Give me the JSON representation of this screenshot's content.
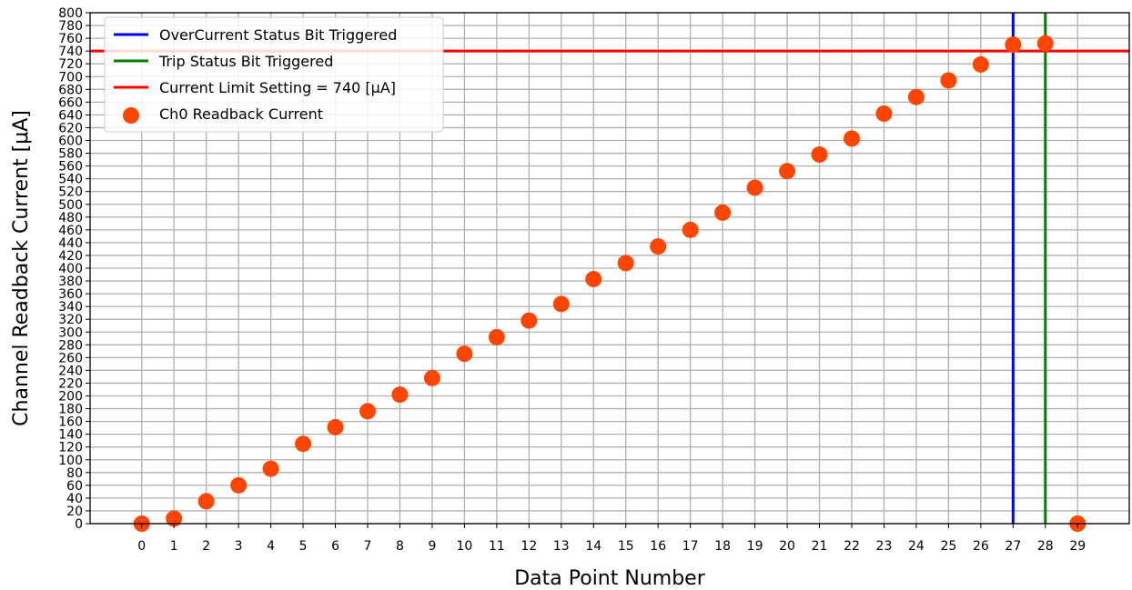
{
  "chart_data": {
    "type": "scatter",
    "title": "",
    "xlabel": "Data Point Number",
    "ylabel": "Channel Readback Current [μA]",
    "xlim": [
      -1.6,
      30.6
    ],
    "ylim": [
      0,
      800
    ],
    "x_ticks": [
      0,
      1,
      2,
      3,
      4,
      5,
      6,
      7,
      8,
      9,
      10,
      11,
      12,
      13,
      14,
      15,
      16,
      17,
      18,
      19,
      20,
      21,
      22,
      23,
      24,
      25,
      26,
      27,
      28,
      29
    ],
    "y_ticks": [
      0,
      20,
      40,
      60,
      80,
      100,
      120,
      140,
      160,
      180,
      200,
      220,
      240,
      260,
      280,
      300,
      320,
      340,
      360,
      380,
      400,
      420,
      440,
      460,
      480,
      500,
      520,
      540,
      560,
      580,
      600,
      620,
      640,
      660,
      680,
      700,
      720,
      740,
      760,
      780,
      800
    ],
    "grid": true,
    "legend_position": "top-left",
    "series": [
      {
        "name": "Ch0 Readback Current",
        "kind": "scatter",
        "color": "#ff4500",
        "x": [
          0,
          1,
          2,
          3,
          4,
          5,
          6,
          7,
          8,
          9,
          10,
          11,
          12,
          13,
          14,
          15,
          16,
          17,
          18,
          19,
          20,
          21,
          22,
          23,
          24,
          25,
          26,
          27,
          28,
          29
        ],
        "y": [
          0,
          8,
          35,
          60,
          86,
          125,
          151,
          176,
          202,
          228,
          266,
          292,
          318,
          344,
          383,
          408,
          434,
          460,
          487,
          526,
          552,
          578,
          603,
          642,
          668,
          694,
          719,
          750,
          752,
          0
        ]
      }
    ],
    "reference_lines": [
      {
        "name": "OverCurrent Status Bit Triggered",
        "orientation": "vertical",
        "value": 27,
        "color": "#0000ff"
      },
      {
        "name": "Trip Status Bit Triggered",
        "orientation": "vertical",
        "value": 28,
        "color": "#008000"
      },
      {
        "name": "Current Limit Setting = 740 [μA]",
        "orientation": "horizontal",
        "value": 740,
        "color": "#ff0000"
      }
    ]
  }
}
